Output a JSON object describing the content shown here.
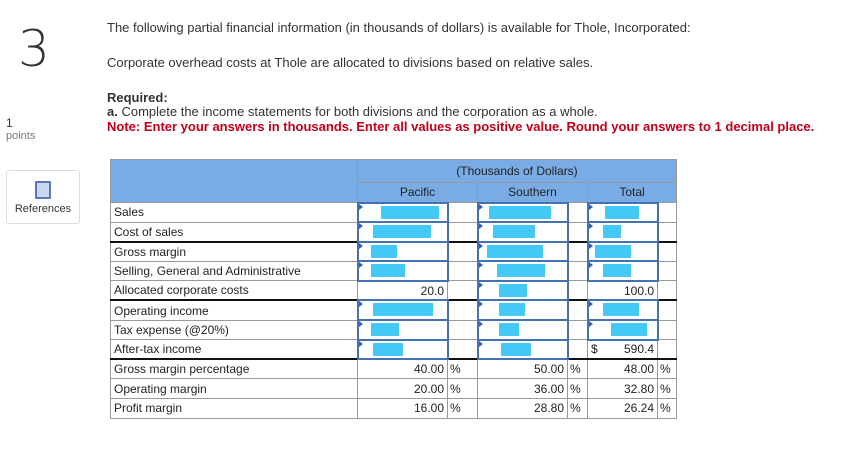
{
  "question": {
    "number": "3",
    "points_value": "1",
    "points_label": "points",
    "references_label": "References"
  },
  "text": {
    "intro": "The following partial financial information (in thousands of dollars) is available for Thole, Incorporated:",
    "overhead": "Corporate overhead costs at Thole are allocated to divisions based on relative sales.",
    "required": "Required:",
    "part_a_prefix": "a.",
    "part_a": " Complete the income statements for both divisions and the corporation as a whole.",
    "note": "Note: Enter your answers in thousands. Enter all values as positive value. Round your answers to 1 decimal place."
  },
  "table": {
    "group_header": "(Thousands of Dollars)",
    "columns": [
      "Pacific",
      "Southern",
      "Total"
    ],
    "rows": [
      {
        "label": "Sales",
        "cells": [
          "",
          "",
          ""
        ]
      },
      {
        "label": "Cost of sales",
        "cells": [
          "",
          "",
          ""
        ]
      },
      {
        "label": "Gross margin",
        "cells": [
          "",
          "",
          ""
        ]
      },
      {
        "label": "Selling, General and Administrative",
        "cells": [
          "",
          "",
          ""
        ]
      },
      {
        "label": "Allocated corporate costs",
        "cells": [
          "20.0",
          "",
          "100.0"
        ]
      },
      {
        "label": "Operating income",
        "cells": [
          "",
          "",
          ""
        ]
      },
      {
        "label": "Tax expense (@20%)",
        "cells": [
          "",
          "",
          ""
        ]
      },
      {
        "label": "After-tax income",
        "cells": [
          "",
          "",
          "590.4"
        ],
        "total_prefix": "$"
      },
      {
        "label": "Gross margin percentage",
        "cells": [
          "40.00",
          "50.00",
          "48.00"
        ]
      },
      {
        "label": "Operating margin",
        "cells": [
          "20.00",
          "36.00",
          "32.80"
        ]
      },
      {
        "label": "Profit margin",
        "cells": [
          "16.00",
          "28.80",
          "26.24"
        ]
      }
    ],
    "percent_sign": "%"
  },
  "colors": {
    "header": "#79ace4",
    "input_border": "#4472b0",
    "redaction": "#44c8f5",
    "note": "#c0001a"
  }
}
